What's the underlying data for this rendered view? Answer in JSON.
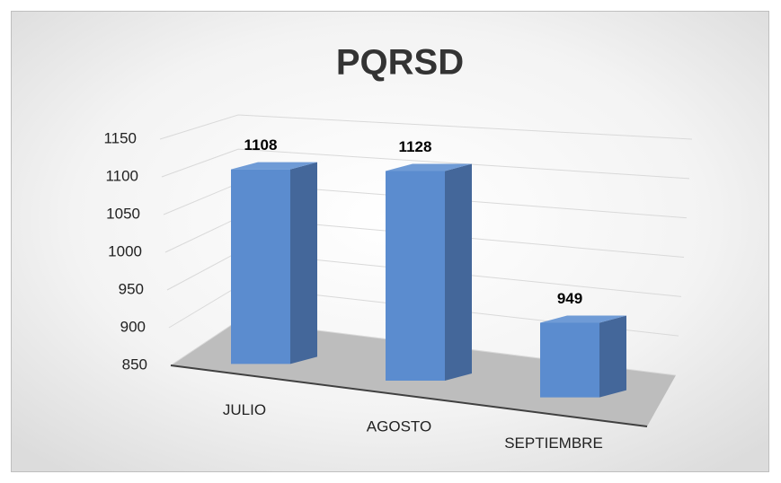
{
  "chart_data": {
    "type": "bar3d",
    "title": "PQRSD",
    "categories": [
      "JULIO",
      "AGOSTO",
      "SEPTIEMBRE"
    ],
    "values": [
      1108,
      1128,
      949
    ],
    "color": "#5b8ccf",
    "ylim": [
      850,
      1150
    ],
    "yticks": [
      850,
      900,
      950,
      1000,
      1050,
      1100,
      1150
    ],
    "grid": true
  }
}
